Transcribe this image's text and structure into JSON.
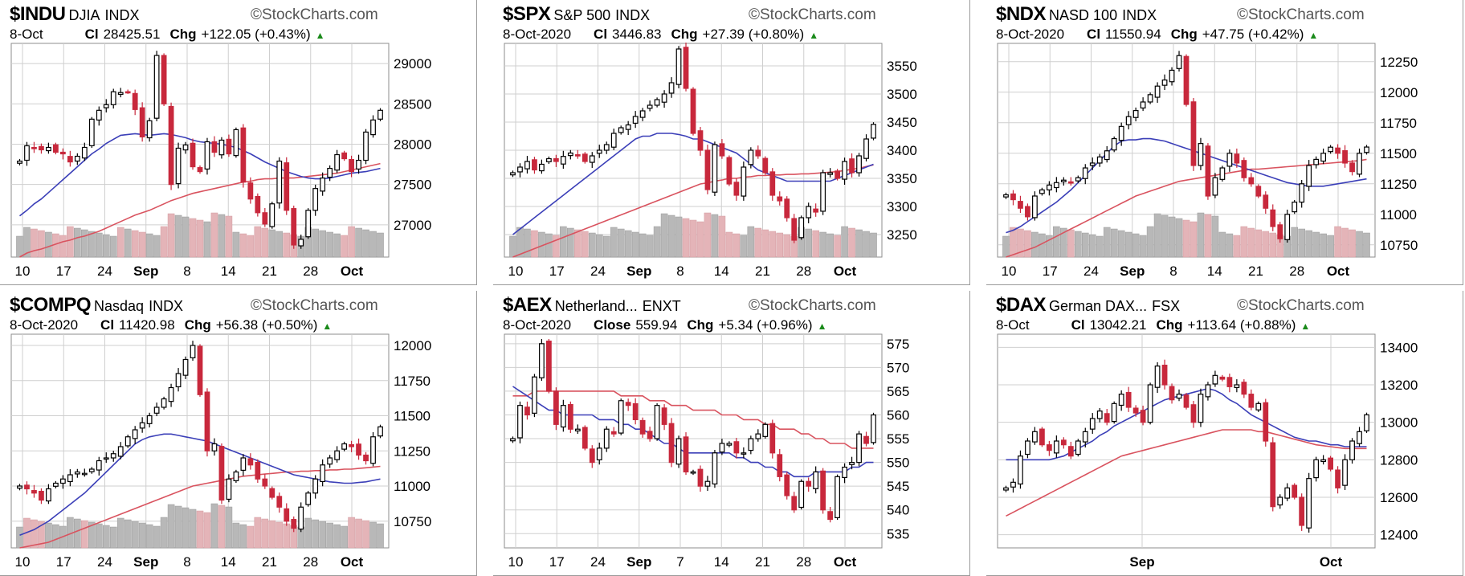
{
  "brand": "©StockCharts.com",
  "colors": {
    "up_candle": "#000000",
    "down_candle": "#c8283c",
    "ma_short": "#3b3fb8",
    "ma_long": "#d9535f",
    "vol_up": "#b8b8b8",
    "vol_down": "#e4b4b8",
    "grid": "#cfcfcf",
    "up_arrow": "#1a8a1a"
  },
  "panels": [
    {
      "symbol": "$INDU",
      "name": "DJIA",
      "exchange": "INDX",
      "date": "8-Oct",
      "close_label": "Cl",
      "close": "28425.51",
      "chg_label": "Chg",
      "chg": "+122.05 (+0.43%)",
      "y_ticks": [
        "29000",
        "28500",
        "28000",
        "27500",
        "27000"
      ],
      "x_ticks": [
        "10",
        "17",
        "24",
        "Sep",
        "8",
        "14",
        "21",
        "28",
        "Oct"
      ]
    },
    {
      "symbol": "$SPX",
      "name": "S&P 500",
      "exchange": "INDX",
      "date": "8-Oct-2020",
      "close_label": "Cl",
      "close": "3446.83",
      "chg_label": "Chg",
      "chg": "+27.39 (+0.80%)",
      "y_ticks": [
        "3550",
        "3500",
        "3450",
        "3400",
        "3350",
        "3300",
        "3250"
      ],
      "x_ticks": [
        "10",
        "17",
        "24",
        "Sep",
        "8",
        "14",
        "21",
        "28",
        "Oct"
      ]
    },
    {
      "symbol": "$NDX",
      "name": "NASD 100",
      "exchange": "INDX",
      "date": "8-Oct-2020",
      "close_label": "Cl",
      "close": "11550.94",
      "chg_label": "Chg",
      "chg": "+47.75 (+0.42%)",
      "y_ticks": [
        "12250",
        "12000",
        "11750",
        "11500",
        "11250",
        "11000",
        "10750"
      ],
      "x_ticks": [
        "10",
        "17",
        "24",
        "Sep",
        "8",
        "14",
        "21",
        "28",
        "Oct"
      ]
    },
    {
      "symbol": "$COMPQ",
      "name": "Nasdaq",
      "exchange": "INDX",
      "date": "8-Oct-2020",
      "close_label": "Cl",
      "close": "11420.98",
      "chg_label": "Chg",
      "chg": "+56.38 (+0.50%)",
      "y_ticks": [
        "12000",
        "11750",
        "11500",
        "11250",
        "11000",
        "10750"
      ],
      "x_ticks": [
        "10",
        "17",
        "24",
        "Sep",
        "8",
        "14",
        "21",
        "28",
        "Oct"
      ]
    },
    {
      "symbol": "$AEX",
      "name": "Netherland...",
      "exchange": "ENXT",
      "date": "8-Oct-2020",
      "close_label": "Close",
      "close": "559.94",
      "chg_label": "Chg",
      "chg": "+5.34 (+0.96%)",
      "y_ticks": [
        "575",
        "570",
        "565",
        "560",
        "555",
        "550",
        "545",
        "540",
        "535"
      ],
      "x_ticks": [
        "10",
        "17",
        "24",
        "Sep",
        "7",
        "14",
        "21",
        "28",
        "Oct"
      ]
    },
    {
      "symbol": "$DAX",
      "name": "German DAX...",
      "exchange": "FSX",
      "date": "8-Oct",
      "close_label": "Cl",
      "close": "13042.21",
      "chg_label": "Chg",
      "chg": "+113.64 (+0.88%)",
      "y_ticks": [
        "13400",
        "13200",
        "13000",
        "12800",
        "12600",
        "12400"
      ],
      "x_ticks": [
        "Sep",
        "Oct"
      ]
    }
  ],
  "chart_data": [
    {
      "type": "candlestick",
      "title": "$INDU DJIA INDX",
      "y_range": [
        26600,
        29250
      ],
      "volume": true,
      "x_tick_labels": [
        "10",
        "17",
        "24",
        "Sep",
        "8",
        "14",
        "21",
        "28",
        "Oct"
      ],
      "close": [
        27790,
        27980,
        27950,
        27930,
        27960,
        27900,
        27880,
        27780,
        27850,
        27960,
        28310,
        28420,
        28490,
        28650,
        28640,
        28650,
        28430,
        28090,
        28290,
        29100,
        28500,
        27500,
        27950,
        27990,
        27720,
        27660,
        28030,
        27900,
        28050,
        27880,
        28180,
        27530,
        27320,
        27150,
        27010,
        27260,
        27790,
        27180,
        26750,
        26820,
        27180,
        27450,
        27580,
        27700,
        27870,
        27820,
        27660,
        27800,
        28150,
        28300,
        28420
      ],
      "ma_short": [
        27110,
        27180,
        27260,
        27320,
        27400,
        27480,
        27560,
        27640,
        27720,
        27800,
        27880,
        27940,
        28010,
        28060,
        28110,
        28120,
        28130,
        28120,
        28110,
        28120,
        28130,
        28120,
        28100,
        28080,
        28050,
        28030,
        28020,
        28010,
        28000,
        27980,
        27960,
        27920,
        27880,
        27830,
        27780,
        27740,
        27700,
        27660,
        27630,
        27600,
        27580,
        27570,
        27570,
        27580,
        27600,
        27620,
        27640,
        27650,
        27660,
        27680,
        27700
      ],
      "ma_long": [
        26600,
        26650,
        26680,
        26700,
        26730,
        26760,
        26790,
        26810,
        26840,
        26860,
        26890,
        26920,
        26960,
        27000,
        27040,
        27080,
        27120,
        27150,
        27180,
        27220,
        27260,
        27300,
        27330,
        27360,
        27390,
        27410,
        27430,
        27450,
        27470,
        27490,
        27510,
        27530,
        27540,
        27560,
        27570,
        27570,
        27580,
        27580,
        27580,
        27590,
        27600,
        27610,
        27620,
        27630,
        27640,
        27660,
        27680,
        27700,
        27720,
        27740,
        27760
      ]
    },
    {
      "type": "candlestick",
      "title": "$SPX S&P 500 INDX",
      "y_range": [
        3210,
        3590
      ],
      "volume": true,
      "x_tick_labels": [
        "10",
        "17",
        "24",
        "Sep",
        "8",
        "14",
        "21",
        "28",
        "Oct"
      ],
      "close": [
        3360,
        3370,
        3380,
        3365,
        3375,
        3385,
        3380,
        3389,
        3395,
        3390,
        3380,
        3390,
        3400,
        3410,
        3430,
        3440,
        3445,
        3460,
        3470,
        3480,
        3490,
        3500,
        3520,
        3580,
        3510,
        3430,
        3400,
        3330,
        3410,
        3390,
        3340,
        3320,
        3370,
        3400,
        3390,
        3360,
        3320,
        3310,
        3280,
        3240,
        3280,
        3300,
        3290,
        3360,
        3360,
        3350,
        3380,
        3360,
        3390,
        3420,
        3446
      ],
      "ma_short": [
        3250,
        3260,
        3270,
        3280,
        3290,
        3300,
        3310,
        3320,
        3330,
        3340,
        3350,
        3360,
        3370,
        3380,
        3390,
        3400,
        3410,
        3420,
        3425,
        3425,
        3430,
        3430,
        3430,
        3428,
        3425,
        3420,
        3420,
        3415,
        3410,
        3405,
        3400,
        3395,
        3385,
        3375,
        3365,
        3360,
        3355,
        3350,
        3345,
        3345,
        3345,
        3345,
        3345,
        3345,
        3345,
        3350,
        3355,
        3360,
        3365,
        3370,
        3375
      ],
      "ma_long": [
        3210,
        3215,
        3220,
        3225,
        3230,
        3235,
        3240,
        3245,
        3250,
        3255,
        3260,
        3265,
        3270,
        3275,
        3280,
        3285,
        3290,
        3295,
        3300,
        3305,
        3310,
        3315,
        3320,
        3325,
        3330,
        3335,
        3340,
        3342,
        3345,
        3347,
        3350,
        3350,
        3352,
        3353,
        3355,
        3355,
        3356,
        3356,
        3357,
        3357,
        3358,
        3358,
        3359,
        3360,
        3361,
        3362,
        3364,
        3366,
        3368,
        3371,
        3374
      ]
    },
    {
      "type": "candlestick",
      "title": "$NDX NASD 100 INDX",
      "y_range": [
        10650,
        12400
      ],
      "volume": true,
      "x_tick_labels": [
        "10",
        "17",
        "24",
        "Sep",
        "8",
        "14",
        "21",
        "28",
        "Oct"
      ],
      "close": [
        11160,
        11120,
        11050,
        10980,
        11150,
        11200,
        11240,
        11260,
        11280,
        11260,
        11300,
        11380,
        11420,
        11470,
        11520,
        11620,
        11720,
        11800,
        11850,
        11920,
        11980,
        12050,
        12100,
        12180,
        12300,
        11900,
        11400,
        11580,
        11150,
        11300,
        11380,
        11500,
        11420,
        11300,
        11250,
        11150,
        11050,
        10900,
        10800,
        11000,
        11100,
        11250,
        11400,
        11450,
        11500,
        11550,
        11500,
        11420,
        11350,
        11500,
        11551
      ],
      "ma_short": [
        10850,
        10870,
        10900,
        10940,
        10980,
        11020,
        11060,
        11100,
        11150,
        11200,
        11260,
        11320,
        11380,
        11440,
        11500,
        11560,
        11600,
        11610,
        11610,
        11620,
        11620,
        11610,
        11600,
        11580,
        11560,
        11540,
        11520,
        11500,
        11480,
        11460,
        11440,
        11420,
        11400,
        11380,
        11360,
        11340,
        11320,
        11300,
        11280,
        11260,
        11250,
        11240,
        11230,
        11230,
        11230,
        11240,
        11250,
        11260,
        11270,
        11280,
        11290
      ],
      "ma_long": [
        10650,
        10670,
        10690,
        10710,
        10730,
        10760,
        10790,
        10820,
        10850,
        10880,
        10910,
        10940,
        10970,
        11000,
        11030,
        11060,
        11090,
        11120,
        11150,
        11170,
        11190,
        11210,
        11230,
        11250,
        11270,
        11280,
        11290,
        11300,
        11310,
        11320,
        11330,
        11340,
        11350,
        11360,
        11370,
        11370,
        11375,
        11380,
        11385,
        11390,
        11395,
        11400,
        11405,
        11410,
        11415,
        11420,
        11425,
        11430,
        11435,
        11440,
        11450
      ]
    },
    {
      "type": "candlestick",
      "title": "$COMPQ Nasdaq INDX",
      "y_range": [
        10560,
        12080
      ],
      "volume": true,
      "x_tick_labels": [
        "10",
        "17",
        "24",
        "Sep",
        "8",
        "14",
        "21",
        "28",
        "Oct"
      ],
      "close": [
        11000,
        10980,
        10950,
        10900,
        10980,
        11020,
        11050,
        11080,
        11100,
        11090,
        11120,
        11180,
        11200,
        11230,
        11280,
        11350,
        11400,
        11450,
        11500,
        11560,
        11620,
        11700,
        11800,
        11900,
        12000,
        11650,
        11250,
        11300,
        10900,
        11050,
        11100,
        11200,
        11150,
        11050,
        11000,
        10920,
        10850,
        10750,
        10700,
        10850,
        10950,
        11050,
        11150,
        11200,
        11250,
        11300,
        11280,
        11220,
        11180,
        11350,
        11421
      ],
      "ma_short": [
        10650,
        10670,
        10690,
        10720,
        10750,
        10790,
        10830,
        10870,
        10910,
        10950,
        11000,
        11050,
        11100,
        11150,
        11200,
        11250,
        11300,
        11330,
        11350,
        11360,
        11370,
        11370,
        11360,
        11350,
        11340,
        11330,
        11320,
        11300,
        11280,
        11260,
        11240,
        11220,
        11200,
        11180,
        11160,
        11140,
        11120,
        11100,
        11080,
        11070,
        11060,
        11050,
        11040,
        11030,
        11025,
        11020,
        11020,
        11025,
        11030,
        11040,
        11050
      ],
      "ma_long": [
        10560,
        10570,
        10580,
        10590,
        10600,
        10620,
        10640,
        10660,
        10680,
        10700,
        10720,
        10740,
        10760,
        10780,
        10800,
        10820,
        10840,
        10860,
        10880,
        10900,
        10920,
        10940,
        10960,
        10980,
        11000,
        11010,
        11020,
        11030,
        11040,
        11050,
        11060,
        11070,
        11075,
        11080,
        11085,
        11090,
        11095,
        11100,
        11100,
        11105,
        11105,
        11110,
        11110,
        11115,
        11115,
        11120,
        11120,
        11125,
        11130,
        11135,
        11140
      ]
    },
    {
      "type": "candlestick",
      "title": "$AEX Netherland... ENXT",
      "y_range": [
        532,
        577
      ],
      "volume": false,
      "x_tick_labels": [
        "10",
        "17",
        "24",
        "Sep",
        "7",
        "14",
        "21",
        "28",
        "Oct"
      ],
      "close": [
        555,
        562,
        560,
        568,
        575,
        565,
        558,
        562,
        557,
        557,
        553,
        550,
        553,
        557,
        556,
        563,
        562,
        559,
        556,
        555,
        562,
        558,
        550,
        555,
        548,
        548,
        545,
        546,
        552,
        554,
        554,
        552,
        552,
        555,
        556,
        558,
        552,
        547,
        543,
        540,
        546,
        545,
        548,
        540,
        538,
        547,
        549,
        550,
        556,
        554,
        560
      ],
      "ma_short": [
        566,
        565,
        564,
        563,
        562,
        561,
        561,
        560,
        560,
        560,
        560,
        560,
        559,
        559,
        559,
        558,
        558,
        557,
        557,
        556,
        555,
        554,
        554,
        553,
        552,
        552,
        552,
        552,
        552,
        552,
        552,
        551,
        551,
        550,
        550,
        549,
        549,
        548,
        548,
        547,
        547,
        547,
        548,
        548,
        548,
        548,
        548,
        549,
        549,
        550,
        550
      ],
      "ma_long": [
        564,
        564,
        564,
        565,
        565,
        565,
        565,
        565,
        565,
        565,
        565,
        565,
        565,
        565,
        565,
        564,
        564,
        564,
        564,
        563,
        563,
        563,
        562,
        562,
        562,
        561,
        561,
        561,
        561,
        560,
        560,
        560,
        559,
        559,
        559,
        558,
        558,
        557,
        557,
        557,
        556,
        556,
        555,
        555,
        554,
        554,
        554,
        553,
        553,
        553,
        553
      ]
    },
    {
      "type": "candlestick",
      "title": "$DAX German DAX... FSX",
      "y_range": [
        12330,
        13470
      ],
      "volume": false,
      "x_tick_labels": [
        "Sep",
        "Oct"
      ],
      "close": [
        12650,
        12680,
        12820,
        12900,
        12950,
        12880,
        12850,
        12900,
        12880,
        12820,
        12900,
        12950,
        13020,
        13060,
        13000,
        13100,
        13150,
        13080,
        13050,
        13000,
        13200,
        13300,
        13200,
        13120,
        13150,
        13080,
        13000,
        13150,
        13200,
        13250,
        13230,
        13190,
        13200,
        13150,
        13080,
        13100,
        12900,
        12550,
        12600,
        12650,
        12600,
        12450,
        12700,
        12800,
        12800,
        12750,
        12650,
        12800,
        12900,
        12950,
        13040
      ],
      "ma_short": [
        12800,
        12800,
        12800,
        12800,
        12800,
        12800,
        12800,
        12810,
        12820,
        12840,
        12860,
        12880,
        12900,
        12930,
        12950,
        12980,
        13000,
        13020,
        13040,
        13060,
        13080,
        13100,
        13120,
        13130,
        13140,
        13150,
        13160,
        13170,
        13180,
        13170,
        13150,
        13120,
        13100,
        13070,
        13040,
        13020,
        13000,
        12980,
        12960,
        12940,
        12920,
        12910,
        12900,
        12900,
        12890,
        12880,
        12880,
        12870,
        12870,
        12870,
        12870
      ],
      "ma_long": [
        12500,
        12520,
        12540,
        12560,
        12580,
        12600,
        12620,
        12640,
        12660,
        12680,
        12700,
        12720,
        12740,
        12760,
        12780,
        12800,
        12820,
        12830,
        12840,
        12850,
        12860,
        12870,
        12880,
        12890,
        12900,
        12910,
        12920,
        12930,
        12940,
        12950,
        12960,
        12960,
        12960,
        12960,
        12960,
        12950,
        12950,
        12940,
        12930,
        12920,
        12910,
        12900,
        12890,
        12880,
        12875,
        12870,
        12865,
        12860,
        12860,
        12860,
        12860
      ]
    }
  ]
}
